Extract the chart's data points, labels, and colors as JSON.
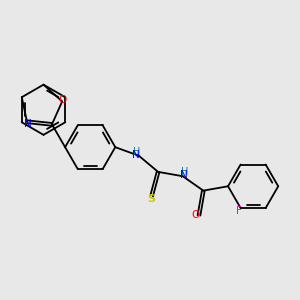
{
  "background_color": "#e8e8e8",
  "bond_color": "#000000",
  "atom_colors": {
    "N": "#0000ff",
    "O": "#ff0000",
    "S": "#cccc00",
    "F": "#ff00cc",
    "H_N": "#008080"
  },
  "figsize": [
    3.0,
    3.0
  ],
  "dpi": 100
}
